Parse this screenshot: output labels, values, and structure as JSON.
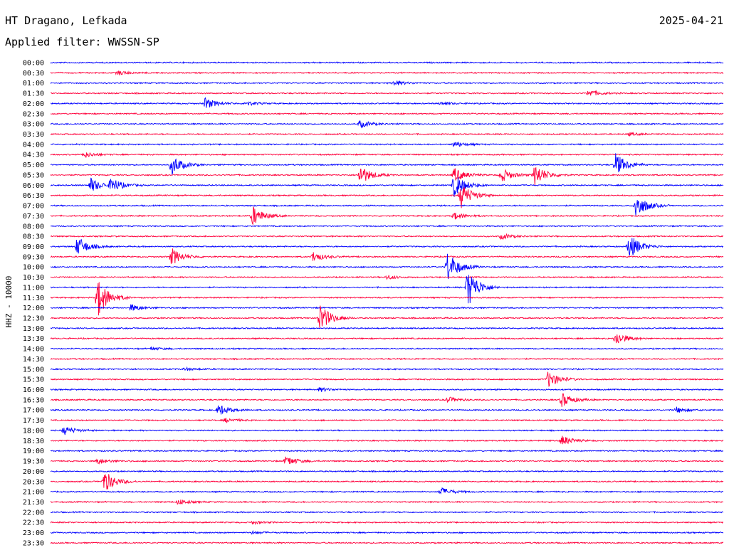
{
  "header": {
    "station": "HT Dragano, Lefkada",
    "date": "2025-04-21",
    "filter": "Applied filter: WWSSN-SP"
  },
  "chart_data": {
    "type": "line",
    "title": "HT Dragano, Lefkada",
    "ylabel": "HHZ - 10000",
    "colors": [
      "#0000ff",
      "#ff003c"
    ],
    "rows": [
      {
        "label": "00:00",
        "events": []
      },
      {
        "label": "00:30",
        "events": [
          [
            0.1,
            3
          ]
        ]
      },
      {
        "label": "01:00",
        "events": [
          [
            0.51,
            4
          ]
        ]
      },
      {
        "label": "01:30",
        "events": [
          [
            0.8,
            5
          ]
        ]
      },
      {
        "label": "02:00",
        "events": [
          [
            0.23,
            8
          ],
          [
            0.29,
            3
          ],
          [
            0.58,
            2
          ]
        ]
      },
      {
        "label": "02:30",
        "events": []
      },
      {
        "label": "03:00",
        "events": [
          [
            0.46,
            5
          ]
        ]
      },
      {
        "label": "03:30",
        "events": [
          [
            0.86,
            2
          ]
        ]
      },
      {
        "label": "04:00",
        "events": [
          [
            0.6,
            4
          ]
        ]
      },
      {
        "label": "04:30",
        "events": [
          [
            0.05,
            4
          ]
        ]
      },
      {
        "label": "05:00",
        "events": [
          [
            0.18,
            14
          ],
          [
            0.84,
            16
          ]
        ]
      },
      {
        "label": "05:30",
        "events": [
          [
            0.46,
            14
          ],
          [
            0.6,
            10
          ],
          [
            0.67,
            10
          ],
          [
            0.72,
            16
          ]
        ]
      },
      {
        "label": "06:00",
        "events": [
          [
            0.06,
            10
          ],
          [
            0.09,
            10
          ],
          [
            0.6,
            17
          ]
        ]
      },
      {
        "label": "06:30",
        "events": [
          [
            0.61,
            18
          ]
        ]
      },
      {
        "label": "07:00",
        "events": [
          [
            0.87,
            18
          ]
        ]
      },
      {
        "label": "07:30",
        "events": [
          [
            0.3,
            14
          ],
          [
            0.6,
            5
          ]
        ]
      },
      {
        "label": "08:00",
        "events": []
      },
      {
        "label": "08:30",
        "events": [
          [
            0.67,
            4
          ]
        ]
      },
      {
        "label": "09:00",
        "events": [
          [
            0.04,
            14
          ],
          [
            0.86,
            18
          ]
        ]
      },
      {
        "label": "09:30",
        "events": [
          [
            0.18,
            12
          ],
          [
            0.39,
            7
          ]
        ]
      },
      {
        "label": "10:00",
        "events": [
          [
            0.59,
            22
          ]
        ]
      },
      {
        "label": "10:30",
        "events": [
          [
            0.5,
            3
          ]
        ]
      },
      {
        "label": "11:00",
        "events": [
          [
            0.62,
            28
          ]
        ]
      },
      {
        "label": "11:30",
        "events": [
          [
            0.07,
            28
          ]
        ]
      },
      {
        "label": "12:00",
        "events": [
          [
            0.12,
            5
          ]
        ]
      },
      {
        "label": "12:30",
        "events": [
          [
            0.4,
            20
          ]
        ]
      },
      {
        "label": "13:00",
        "events": []
      },
      {
        "label": "13:30",
        "events": [
          [
            0.84,
            10
          ]
        ]
      },
      {
        "label": "14:00",
        "events": [
          [
            0.15,
            2
          ]
        ]
      },
      {
        "label": "14:30",
        "events": []
      },
      {
        "label": "15:00",
        "events": [
          [
            0.2,
            2
          ]
        ]
      },
      {
        "label": "15:30",
        "events": [
          [
            0.74,
            12
          ]
        ]
      },
      {
        "label": "16:00",
        "events": [
          [
            0.4,
            3
          ]
        ]
      },
      {
        "label": "16:30",
        "events": [
          [
            0.59,
            4
          ],
          [
            0.76,
            10
          ]
        ]
      },
      {
        "label": "17:00",
        "events": [
          [
            0.25,
            8
          ],
          [
            0.93,
            4
          ]
        ]
      },
      {
        "label": "17:30",
        "events": [
          [
            0.26,
            3
          ]
        ]
      },
      {
        "label": "18:00",
        "events": [
          [
            0.02,
            6
          ]
        ]
      },
      {
        "label": "18:30",
        "events": [
          [
            0.76,
            7
          ]
        ]
      },
      {
        "label": "19:00",
        "events": []
      },
      {
        "label": "19:30",
        "events": [
          [
            0.07,
            4
          ],
          [
            0.35,
            7
          ]
        ]
      },
      {
        "label": "20:00",
        "events": []
      },
      {
        "label": "20:30",
        "events": [
          [
            0.08,
            16
          ]
        ]
      },
      {
        "label": "21:00",
        "events": [
          [
            0.58,
            6
          ]
        ]
      },
      {
        "label": "21:30",
        "events": [
          [
            0.19,
            4
          ]
        ]
      },
      {
        "label": "22:00",
        "events": []
      },
      {
        "label": "22:30",
        "events": [
          [
            0.3,
            2
          ]
        ]
      },
      {
        "label": "23:00",
        "events": [
          [
            0.3,
            2
          ]
        ]
      },
      {
        "label": "23:30",
        "events": []
      }
    ]
  }
}
